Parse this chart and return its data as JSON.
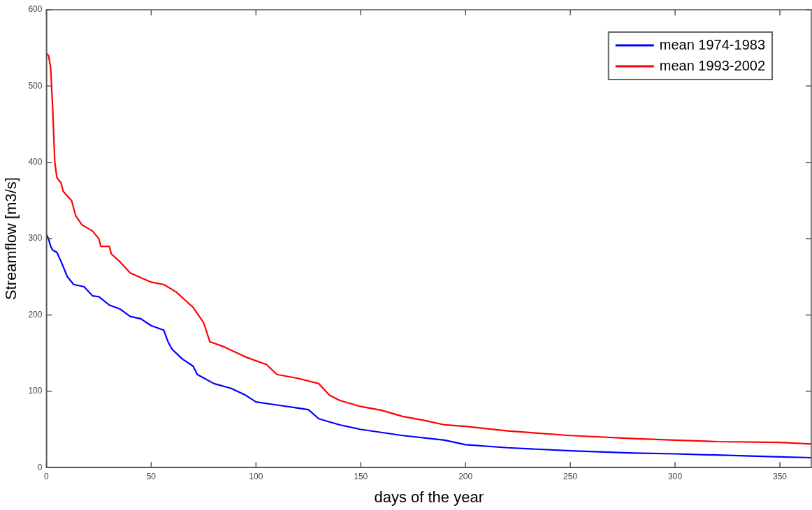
{
  "chart_data": {
    "type": "line",
    "xlabel": "days of the year",
    "ylabel": "Streamflow [m3/s]",
    "xlim": [
      0,
      365
    ],
    "xticks": [
      0,
      50,
      100,
      150,
      200,
      250,
      300,
      350
    ],
    "ylim": [
      0,
      600
    ],
    "yticks": [
      0,
      100,
      200,
      300,
      400,
      500,
      600
    ],
    "grid": false,
    "legend": "top right",
    "marker": "none",
    "line_style": "solid",
    "series": [
      {
        "name": "mean 1974-1983",
        "color": "#0000ff",
        "x": [
          0,
          1,
          2,
          3,
          5,
          7,
          10,
          13,
          18,
          22,
          25,
          30,
          35,
          40,
          45,
          50,
          56,
          58,
          60,
          65,
          70,
          72,
          80,
          88,
          95,
          100,
          110,
          120,
          125,
          130,
          140,
          150,
          170,
          190,
          200,
          220,
          250,
          280,
          300,
          350,
          365
        ],
        "values": [
          305,
          300,
          290,
          285,
          282,
          270,
          250,
          240,
          237,
          225,
          224,
          213,
          208,
          198,
          195,
          186,
          180,
          165,
          155,
          142,
          133,
          122,
          110,
          104,
          95,
          86,
          82,
          78,
          76,
          64,
          56,
          50,
          42,
          36,
          30,
          26,
          22,
          19,
          18,
          14,
          13
        ]
      },
      {
        "name": "mean 1993-2002",
        "color": "#ff0000",
        "x": [
          0,
          1,
          2,
          3,
          4,
          5,
          7,
          8,
          12,
          14,
          17,
          22,
          25,
          26,
          30,
          31,
          35,
          40,
          50,
          56,
          62,
          70,
          75,
          78,
          85,
          95,
          105,
          110,
          120,
          130,
          135,
          140,
          150,
          160,
          170,
          180,
          190,
          200,
          220,
          250,
          280,
          300,
          320,
          350,
          365
        ],
        "values": [
          543,
          540,
          525,
          470,
          400,
          380,
          373,
          362,
          350,
          330,
          318,
          310,
          300,
          290,
          290,
          280,
          270,
          255,
          243,
          240,
          230,
          210,
          190,
          165,
          158,
          145,
          135,
          122,
          117,
          110,
          95,
          88,
          80,
          75,
          67,
          62,
          56,
          54,
          48,
          42,
          38,
          36,
          34,
          33,
          31
        ]
      }
    ]
  }
}
